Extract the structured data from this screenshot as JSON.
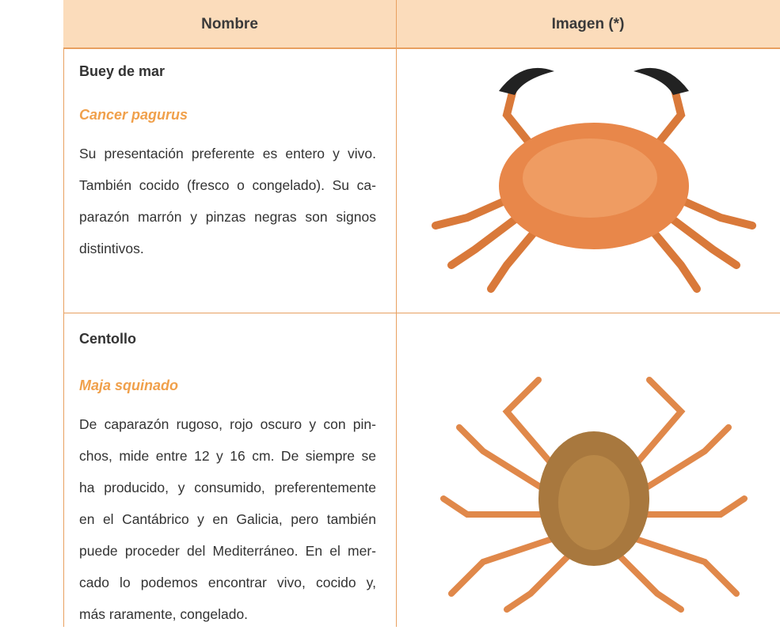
{
  "table": {
    "columns": [
      "Nombre",
      "Imagen (*)"
    ],
    "rows": [
      {
        "name": "Buey de mar",
        "scientific_name": "Cancer pagurus",
        "description": [
          "Su presentación preferente es entero y vivo.",
          "También cocido (fresco o congelado). Su ca-",
          "parazón marrón y pinzas negras son signos",
          "distintivos."
        ]
      },
      {
        "name": "Centollo",
        "scientific_name": "Maja squinado",
        "description": [
          "De caparazón rugoso, rojo oscuro y con pin-",
          "chos, mide entre 12 y 16 cm. De siempre se",
          "ha producido, y consumido, preferentemente",
          "en el Cantábrico y en Galicia, pero también",
          "puede proceder del Mediterráneo. En el mer-",
          "cado lo podemos encontrar vivo, cocido y,",
          "más raramente, congelado."
        ]
      }
    ]
  }
}
